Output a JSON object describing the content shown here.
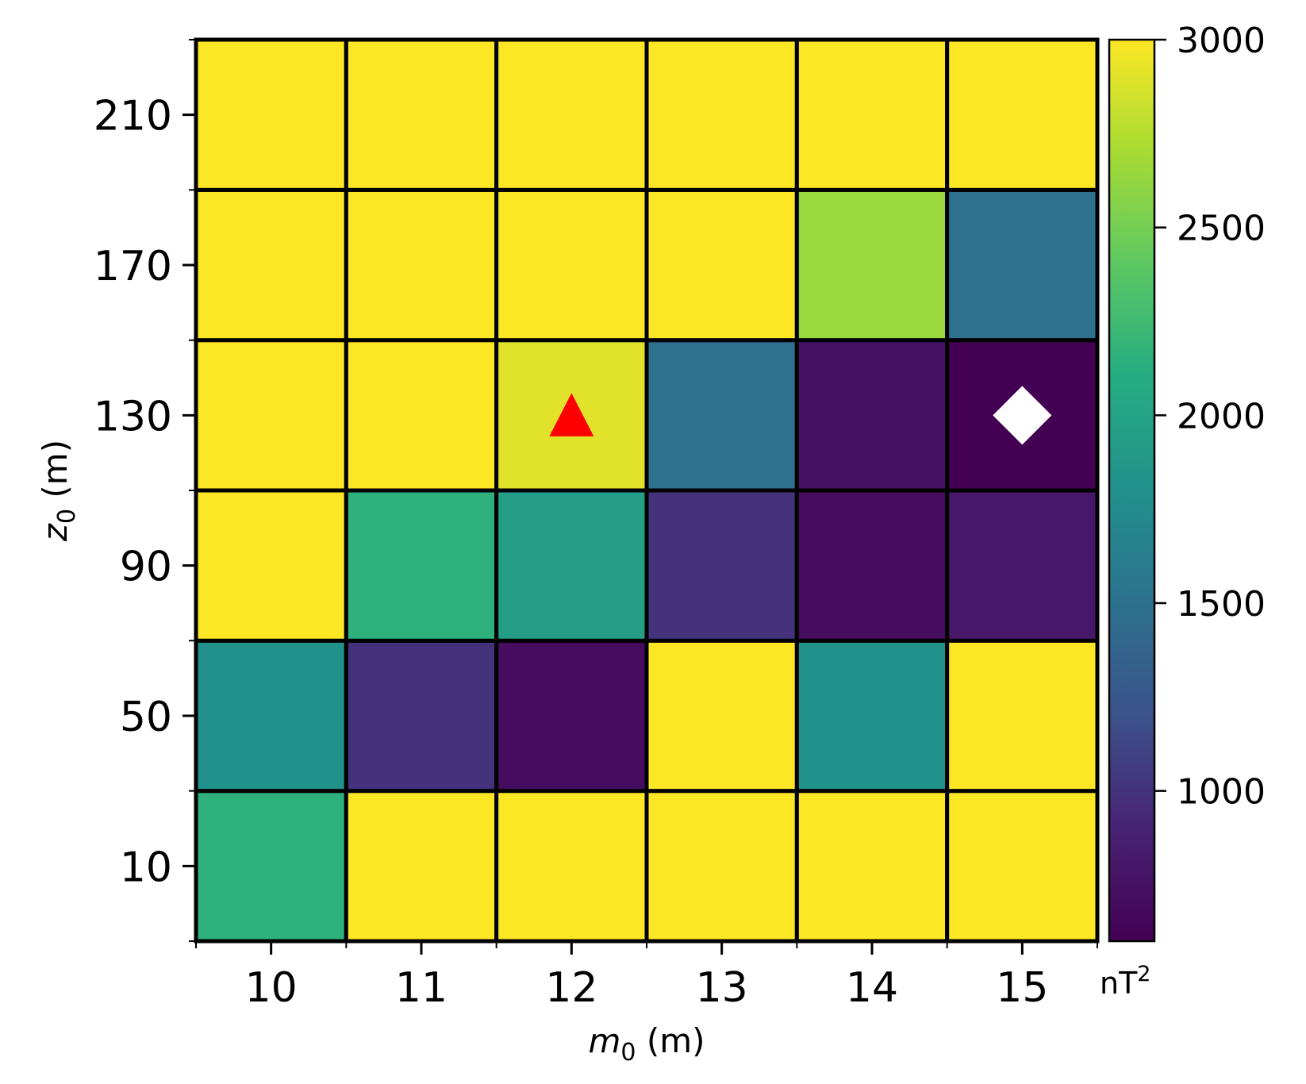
{
  "chart_data": {
    "type": "heatmap",
    "x": [
      10,
      11,
      12,
      13,
      14,
      15
    ],
    "y": [
      10,
      50,
      90,
      130,
      170,
      210
    ],
    "values": [
      [
        2150,
        3000,
        3000,
        3000,
        3000,
        3000
      ],
      [
        1800,
        1000,
        700,
        3000,
        1800,
        3000
      ],
      [
        3000,
        2150,
        1950,
        1000,
        700,
        800
      ],
      [
        3000,
        3000,
        2900,
        1500,
        750,
        600
      ],
      [
        3000,
        3000,
        3000,
        3000,
        2650,
        1500
      ],
      [
        3000,
        3000,
        3000,
        3000,
        3000,
        3000
      ]
    ],
    "xlabel_main": "m",
    "xlabel_sub": "0",
    "xlabel_rest": " (m)",
    "ylabel_main": "z",
    "ylabel_sub": "0",
    "ylabel_rest": " (m)",
    "xticks": [
      "10",
      "11",
      "12",
      "13",
      "14",
      "15"
    ],
    "yticks": [
      "10",
      "50",
      "90",
      "130",
      "170",
      "210"
    ],
    "colorbar": {
      "min": 600,
      "max": 3000,
      "ticks": [
        1000,
        1500,
        2000,
        2500,
        3000
      ],
      "tick_labels": [
        "1000",
        "1500",
        "2000",
        "2500",
        "3000"
      ],
      "unit_main": "nT",
      "unit_sup": "2",
      "colormap": "viridis"
    },
    "markers": [
      {
        "name": "triangle-marker",
        "shape": "triangle",
        "x": 12,
        "y": 130,
        "color": "#ff0000"
      },
      {
        "name": "diamond-marker",
        "shape": "diamond",
        "x": 15,
        "y": 130,
        "color": "#ffffff"
      }
    ],
    "grid": false
  }
}
